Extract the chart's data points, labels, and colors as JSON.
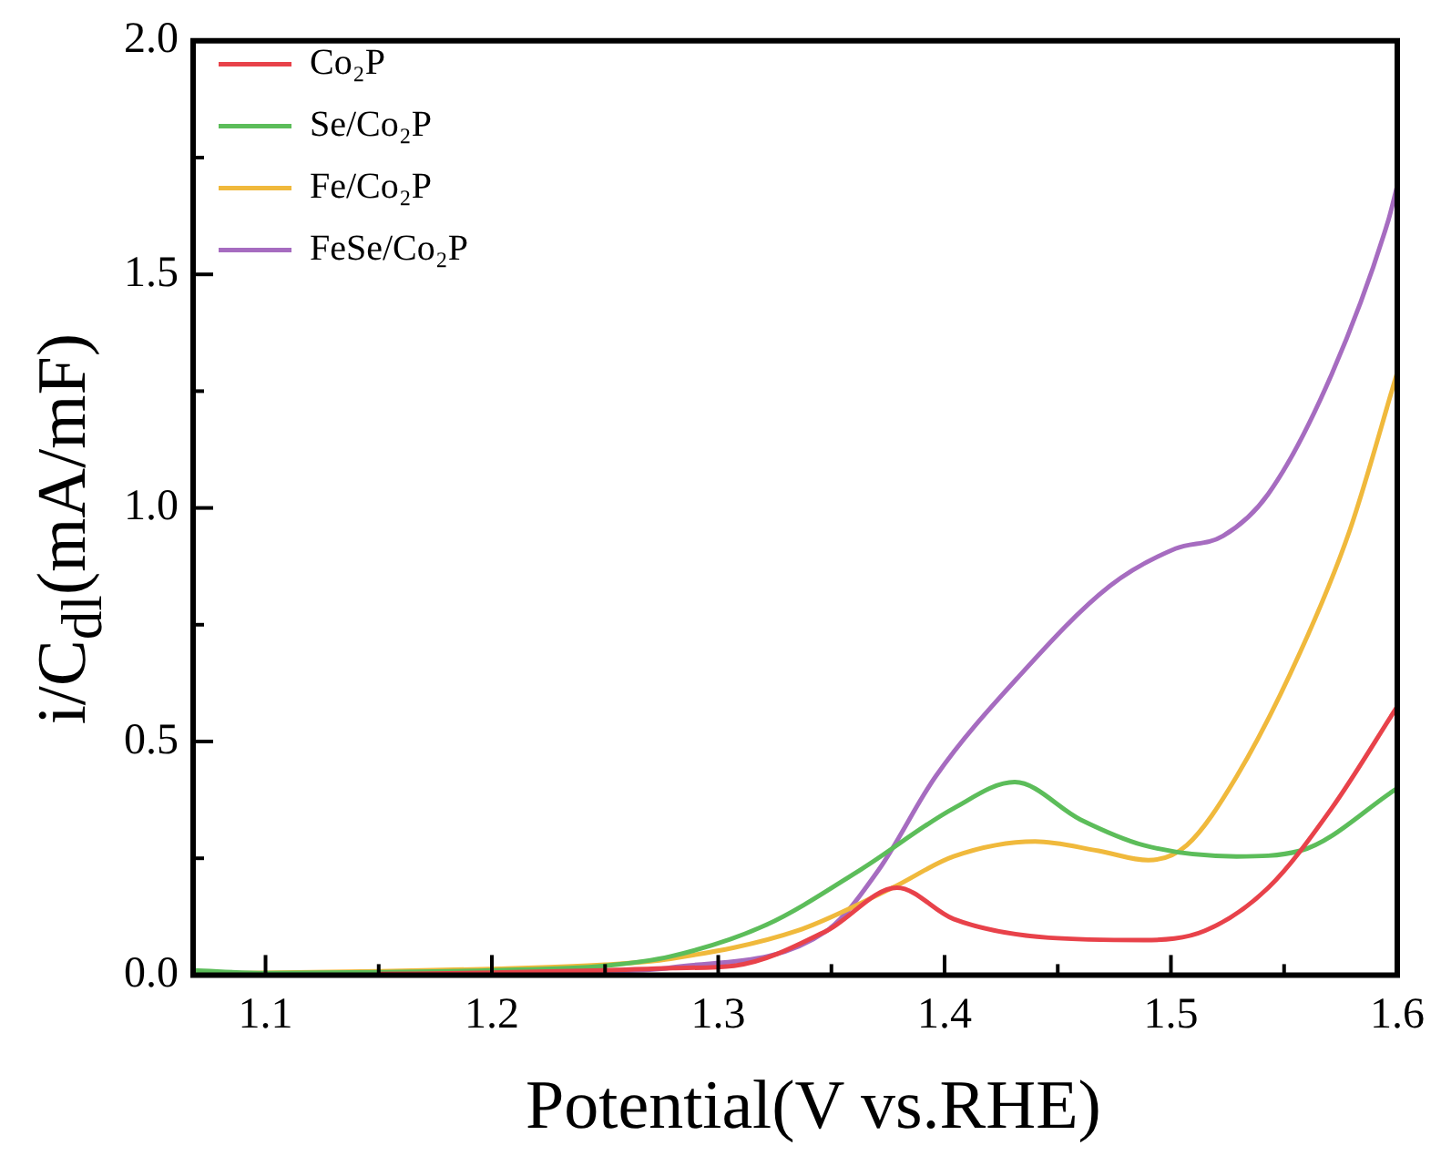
{
  "chart_data": {
    "type": "line",
    "xlabel": "Potential(V vs.RHE)",
    "ylabel": "i/C$_{dl}$(mA/mF)",
    "xlim": [
      1.068,
      1.6
    ],
    "ylim": [
      0,
      2
    ],
    "xticks": [
      {
        "value": 1.1,
        "label": "1.1"
      },
      {
        "value": 1.15,
        "label": null
      },
      {
        "value": 1.2,
        "label": "1.2"
      },
      {
        "value": 1.25,
        "label": null
      },
      {
        "value": 1.3,
        "label": "1.3"
      },
      {
        "value": 1.35,
        "label": null
      },
      {
        "value": 1.4,
        "label": "1.4"
      },
      {
        "value": 1.45,
        "label": null
      },
      {
        "value": 1.5,
        "label": "1.5"
      },
      {
        "value": 1.55,
        "label": null
      },
      {
        "value": 1.6,
        "label": "1.6"
      }
    ],
    "yticks": [
      {
        "value": 0,
        "label": "0.0"
      },
      {
        "value": 0.25,
        "label": null
      },
      {
        "value": 0.5,
        "label": "0.5"
      },
      {
        "value": 0.75,
        "label": null
      },
      {
        "value": 1,
        "label": "1.0"
      },
      {
        "value": 1.25,
        "label": null
      },
      {
        "value": 1.5,
        "label": "1.5"
      },
      {
        "value": 1.75,
        "label": null
      },
      {
        "value": 2,
        "label": "2.0"
      }
    ],
    "legend": "top left",
    "marker": "none",
    "line_style": "solid",
    "grid": false,
    "series": [
      {
        "name": "Co₂P",
        "color": "#e8424a",
        "x": [
          1.15,
          1.2,
          1.25,
          1.28,
          1.307,
          1.348,
          1.379,
          1.404,
          1.446,
          1.488,
          1.515,
          1.543,
          1.571,
          1.6
        ],
        "values": [
          0.002,
          0.005,
          0.01,
          0.015,
          0.02,
          0.095,
          0.187,
          0.12,
          0.08,
          0.075,
          0.095,
          0.187,
          0.357,
          0.575
        ]
      },
      {
        "name": "Se/Co₂P",
        "color": "#5cbd5a",
        "x": [
          1.068,
          1.1,
          1.15,
          1.2,
          1.25,
          1.279,
          1.321,
          1.363,
          1.404,
          1.431,
          1.46,
          1.488,
          1.529,
          1.557,
          1.6
        ],
        "values": [
          0.01,
          0.004,
          0.006,
          0.01,
          0.02,
          0.04,
          0.107,
          0.226,
          0.357,
          0.413,
          0.333,
          0.278,
          0.254,
          0.266,
          0.4
        ]
      },
      {
        "name": "Fe/Co₂P",
        "color": "#f0b93c",
        "x": [
          1.068,
          1.15,
          1.2,
          1.25,
          1.279,
          1.335,
          1.377,
          1.404,
          1.44,
          1.468,
          1.49,
          1.507,
          1.529,
          1.557,
          1.579,
          1.6
        ],
        "values": [
          0.003,
          0.008,
          0.013,
          0.022,
          0.035,
          0.095,
          0.187,
          0.254,
          0.286,
          0.266,
          0.246,
          0.278,
          0.425,
          0.69,
          0.952,
          1.29
        ]
      },
      {
        "name": "FeSe/Co₂P",
        "color": "#a66cc0",
        "x": [
          1.2,
          1.25,
          1.279,
          1.348,
          1.371,
          1.396,
          1.432,
          1.473,
          1.502,
          1.523,
          1.543,
          1.571,
          1.596,
          1.6
        ],
        "values": [
          0.004,
          0.008,
          0.016,
          0.095,
          0.226,
          0.425,
          0.635,
          0.833,
          0.913,
          0.94,
          1.03,
          1.286,
          1.615,
          1.69
        ]
      }
    ]
  }
}
